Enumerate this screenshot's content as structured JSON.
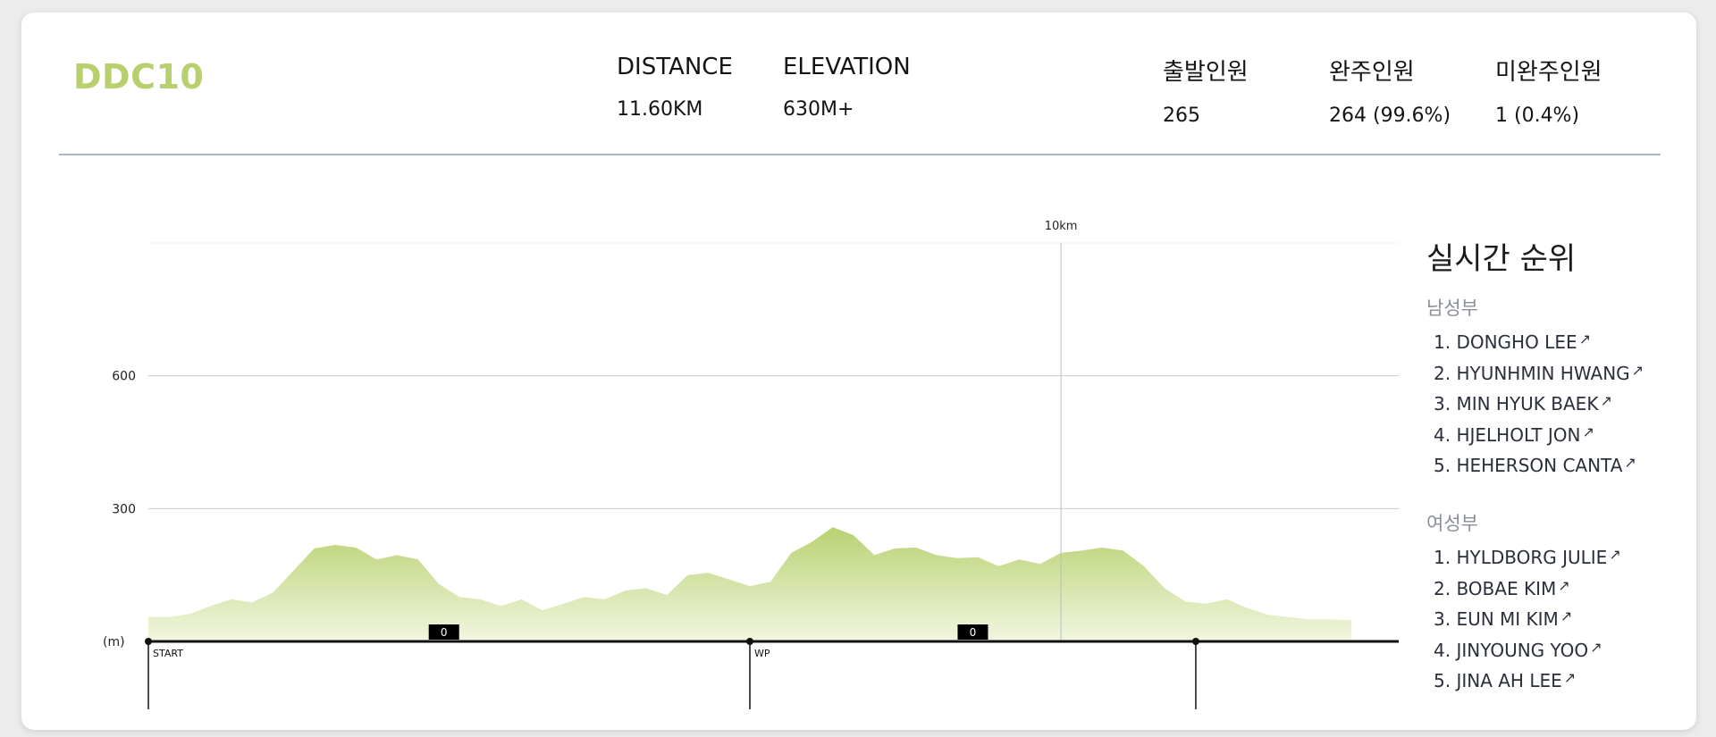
{
  "race": {
    "name": "DDC10",
    "stats": [
      {
        "label": "DISTANCE",
        "value": "11.60KM"
      },
      {
        "label": "ELEVATION",
        "value": "630M+"
      },
      {
        "label": "출발인원",
        "value": "265"
      },
      {
        "label": "완주인원",
        "value": "264 (99.6%)"
      },
      {
        "label": "미완주인원",
        "value": "1 (0.4%)"
      }
    ]
  },
  "chart_data": {
    "type": "area",
    "ylabel": "(m)",
    "y_ticks": [
      300,
      600
    ],
    "ylim": [
      0,
      900
    ],
    "xlim": [
      0,
      11.6
    ],
    "grid": true,
    "series": [
      {
        "x": [
          0,
          0.2,
          0.4,
          0.6,
          0.8,
          1.0,
          1.2,
          1.4,
          1.6,
          1.8,
          2.0,
          2.2,
          2.4,
          2.6,
          2.8,
          3.0,
          3.2,
          3.4,
          3.6,
          3.8,
          4.0,
          4.2,
          4.4,
          4.6,
          4.8,
          5.0,
          5.2,
          5.4,
          5.6,
          5.8,
          6.0,
          6.2,
          6.4,
          6.6,
          6.8,
          7.0,
          7.2,
          7.4,
          7.6,
          7.8,
          8.0,
          8.2,
          8.4,
          8.6,
          8.8,
          9.0,
          9.2,
          9.4,
          9.6,
          9.8,
          10.0,
          10.2,
          10.4,
          10.6,
          10.8,
          11.0,
          11.2,
          11.4,
          11.6
        ],
        "values": [
          55,
          55,
          62,
          80,
          95,
          88,
          110,
          160,
          210,
          218,
          212,
          185,
          195,
          185,
          130,
          100,
          95,
          80,
          95,
          70,
          85,
          100,
          95,
          115,
          120,
          105,
          150,
          155,
          140,
          125,
          135,
          200,
          225,
          258,
          240,
          195,
          210,
          212,
          195,
          188,
          190,
          170,
          185,
          175,
          200,
          205,
          212,
          205,
          170,
          120,
          90,
          85,
          95,
          75,
          60,
          55,
          50,
          50,
          48
        ]
      }
    ],
    "markers": [
      {
        "label": "START",
        "x": 0
      },
      {
        "label": "WP",
        "x": 5.8
      },
      {
        "label": "",
        "x": 10.1
      }
    ],
    "ref_line": {
      "label": "10km",
      "x": 8.8
    },
    "badges": [
      {
        "label": "0",
        "x": 2.85
      },
      {
        "label": "0",
        "x": 7.95
      }
    ],
    "colors": {
      "fill_top": "#b9d172",
      "fill_bottom": "#f1f6df",
      "grid": "#c8ccd2",
      "axis": "#111111"
    }
  },
  "ranking": {
    "title": "실시간 순위",
    "male": {
      "label": "남성부",
      "items": [
        "1. DONGHO LEE",
        "2. HYUNHMIN HWANG",
        "3. MIN HYUK BAEK",
        "4. HJELHOLT JON",
        "5. HEHERSON CANTA"
      ]
    },
    "female": {
      "label": "여성부",
      "items": [
        "1. HYLDBORG JULIE",
        "2. BOBAE KIM",
        "3. EUN MI KIM",
        "4. JINYOUNG YOO",
        "5. JINA AH LEE"
      ]
    },
    "link_icon": "↗"
  }
}
